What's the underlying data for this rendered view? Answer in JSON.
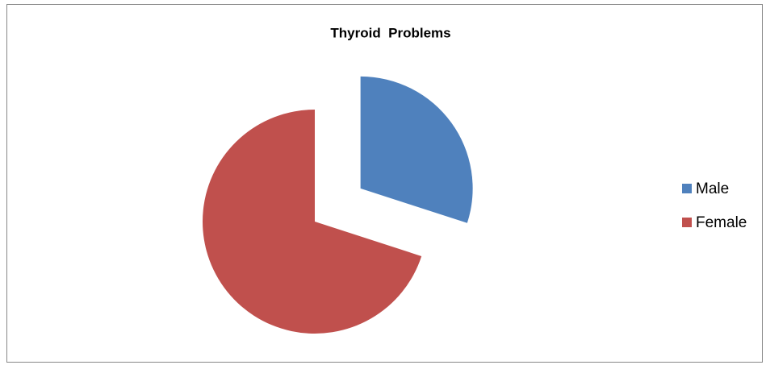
{
  "chart_data": {
    "type": "pie",
    "title": "Thyroid  Problems",
    "categories": [
      "Male",
      "Female"
    ],
    "values": [
      30,
      70
    ],
    "colors": [
      "#4f81bd",
      "#c0504d"
    ],
    "legend": "right"
  }
}
